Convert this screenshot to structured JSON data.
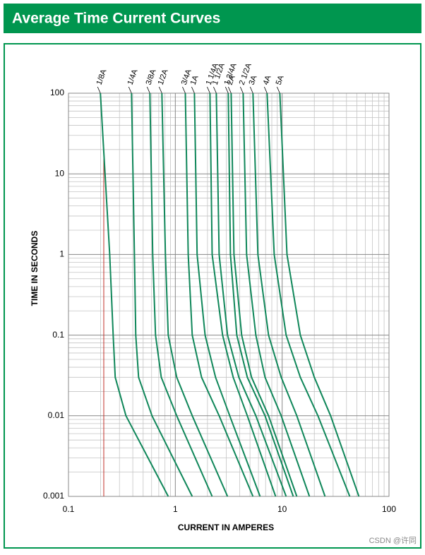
{
  "header": {
    "title": "Average Time Current Curves"
  },
  "chart_data": {
    "type": "line",
    "xlabel": "CURRENT IN AMPERES",
    "ylabel": "TIME IN SECONDS",
    "xscale": "log",
    "yscale": "log",
    "xlim": [
      0.1,
      100
    ],
    "ylim": [
      0.001,
      100
    ],
    "xticks": [
      0.1,
      1,
      10,
      100
    ],
    "yticks": [
      100,
      10,
      1,
      0.1,
      0.01,
      0.001
    ],
    "grid": true,
    "series": [
      {
        "name": "1/8A",
        "color": "#10875a",
        "x": [
          0.199,
          0.243,
          0.262,
          0.274,
          0.345,
          0.859
        ],
        "values": [
          100,
          1,
          0.1,
          0.03,
          0.01,
          0.001
        ]
      },
      {
        "name": "1/4A",
        "color": "#10875a",
        "x": [
          0.389,
          0.414,
          0.426,
          0.453,
          0.605,
          1.44
        ],
        "values": [
          100,
          1,
          0.1,
          0.03,
          0.01,
          0.001
        ]
      },
      {
        "name": "3/8A",
        "color": "#10875a",
        "x": [
          0.578,
          0.614,
          0.653,
          0.738,
          1.03,
          2.21
        ],
        "values": [
          100,
          1,
          0.1,
          0.03,
          0.01,
          0.001
        ]
      },
      {
        "name": "1/2A",
        "color": "#10875a",
        "x": [
          0.749,
          0.808,
          0.859,
          1.03,
          1.44,
          3.08
        ],
        "values": [
          100,
          1,
          0.1,
          0.03,
          0.01,
          0.001
        ]
      },
      {
        "name": "3/4A",
        "color": "#10875a",
        "x": [
          1.24,
          1.32,
          1.44,
          1.76,
          2.57,
          5.33
        ],
        "values": [
          100,
          1,
          0.1,
          0.03,
          0.01,
          0.001
        ]
      },
      {
        "name": "1A",
        "color": "#10875a",
        "x": [
          1.51,
          1.6,
          1.9,
          2.38,
          3.23,
          6.21
        ],
        "values": [
          100,
          1,
          0.1,
          0.03,
          0.01,
          0.001
        ]
      },
      {
        "name": "1 1/4A",
        "color": "#10875a",
        "x": [
          2.11,
          2.21,
          2.77,
          3.48,
          4.72,
          8.68
        ],
        "values": [
          100,
          1,
          0.1,
          0.03,
          0.01,
          0.001
        ]
      },
      {
        "name": "1 1/2A",
        "color": "#10875a",
        "x": [
          2.42,
          2.57,
          3.08,
          3.93,
          5.67,
          10.9
        ],
        "values": [
          100,
          1,
          0.1,
          0.03,
          0.01,
          0.001
        ]
      },
      {
        "name": "1 3/4A",
        "color": "#10875a",
        "x": [
          3.13,
          3.28,
          3.76,
          4.72,
          6.91,
          12.7
        ],
        "values": [
          100,
          1,
          0.1,
          0.03,
          0.01,
          0.001
        ]
      },
      {
        "name": "2A",
        "color": "#10875a",
        "x": [
          3.33,
          3.54,
          4.18,
          5.17,
          7.46,
          13.7
        ],
        "values": [
          100,
          1,
          0.1,
          0.03,
          0.01,
          0.001
        ]
      },
      {
        "name": "2 1/2A",
        "color": "#10875a",
        "x": [
          4.31,
          4.65,
          5.67,
          6.91,
          9.8,
          18.0
        ],
        "values": [
          100,
          1,
          0.1,
          0.03,
          0.01,
          0.001
        ]
      },
      {
        "name": "3A",
        "color": "#10875a",
        "x": [
          5.33,
          5.93,
          7.46,
          9.8,
          13.7,
          25.2
        ],
        "values": [
          100,
          1,
          0.1,
          0.03,
          0.01,
          0.001
        ]
      },
      {
        "name": "4A",
        "color": "#10875a",
        "x": [
          7.23,
          8.42,
          10.9,
          14.8,
          21.6,
          42.9
        ],
        "values": [
          100,
          1,
          0.1,
          0.03,
          0.01,
          0.001
        ]
      },
      {
        "name": "5A",
        "color": "#10875a",
        "x": [
          9.51,
          11.1,
          14.8,
          20.0,
          28.4,
          52.3
        ],
        "values": [
          100,
          1,
          0.1,
          0.03,
          0.01,
          0.001
        ]
      }
    ]
  },
  "watermark": "CSDN @许同"
}
